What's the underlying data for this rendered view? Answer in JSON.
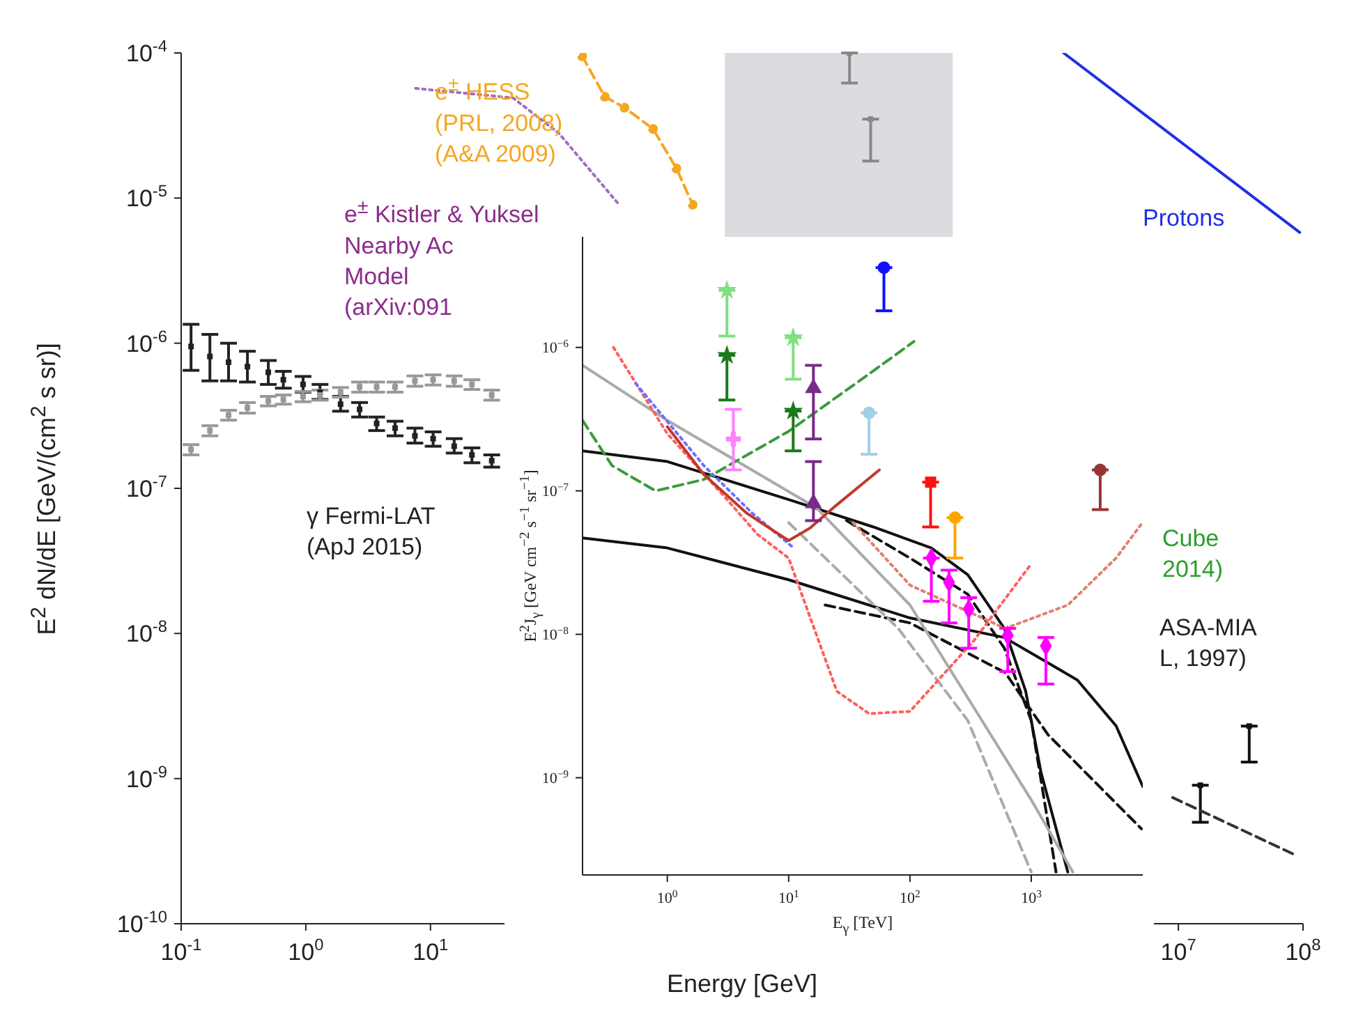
{
  "chart_data": [
    {
      "type": "scatter",
      "xlabel": "Energy [GeV]",
      "ylabel": "E$^{2}$ dN/dE  [GeV/(cm$^{2}$ s sr)]",
      "log": "xy",
      "xlim": [
        0.1,
        100000000
      ],
      "ylim": [
        1e-10,
        0.0001
      ],
      "xticks": [
        {
          "value": 0.1,
          "label": "10$^{-1}$"
        },
        {
          "value": 1,
          "label": "10$^{0}$"
        },
        {
          "value": 10,
          "label": "10$^{1}$"
        },
        {
          "value": 100,
          "label": null
        },
        {
          "value": 1000,
          "label": null
        },
        {
          "value": 10000,
          "label": null
        },
        {
          "value": 100000,
          "label": null
        },
        {
          "value": 1000000,
          "label": null
        },
        {
          "value": 10000000,
          "label": "10$^{7}$"
        },
        {
          "value": 100000000,
          "label": "10$^{8}$"
        }
      ],
      "yticks": [
        {
          "value": 1e-10,
          "label": "10$^{-10}$"
        },
        {
          "value": 1e-09,
          "label": "10$^{-9}$"
        },
        {
          "value": 1e-08,
          "label": "10$^{-8}$"
        },
        {
          "value": 1e-07,
          "label": "10$^{-7}$"
        },
        {
          "value": 1e-06,
          "label": "10$^{-6}$"
        },
        {
          "value": 1e-05,
          "label": "10$^{-5}$"
        },
        {
          "value": 0.0001,
          "label": "10$^{-4}$"
        }
      ],
      "bands": [
        {
          "axis": "x",
          "from": 2300,
          "to": 155000,
          "color": "#dcdce0"
        }
      ],
      "annotations": [
        "e$^{±}$ HESS\n(PRL, 2008)\n(A&A 2009)",
        "e$^{±}$ Kistler & Yuksel\nNearby Ac\nModel\n(arXiv:091",
        "γ Fermi-LAT\n(ApJ 2015)",
        "Cube\n2014)",
        "ASA-MIA\nL, 1997)",
        "Protons"
      ],
      "series": [
        {
          "marker": "square",
          "color": "#222222",
          "x": [
            0.12,
            0.17,
            0.24,
            0.34,
            0.5,
            0.66,
            0.95,
            1.3,
            1.9,
            2.7,
            3.7,
            5.2,
            7.5,
            10.5,
            15.5,
            21.5,
            31
          ],
          "values": [
            9.5e-07,
            8.1e-07,
            7.4e-07,
            6.9e-07,
            6.3e-07,
            5.6e-07,
            5.2e-07,
            4.6e-07,
            3.8e-07,
            3.5e-07,
            2.8e-07,
            2.6e-07,
            2.3e-07,
            2.2e-07,
            1.95e-07,
            1.7e-07,
            1.55e-07
          ],
          "errors": [
            [
              6.5e-07,
              1.35e-06
            ],
            [
              5.5e-07,
              1.15e-06
            ],
            [
              5.5e-07,
              1e-06
            ],
            [
              5.4e-07,
              8.8e-07
            ],
            [
              5.2e-07,
              7.6e-07
            ],
            [
              4.9e-07,
              6.4e-07
            ],
            [
              4.6e-07,
              5.9e-07
            ],
            [
              4.1e-07,
              5.2e-07
            ],
            [
              3.4e-07,
              4.3e-07
            ],
            [
              3.1e-07,
              3.9e-07
            ],
            [
              2.5e-07,
              3.1e-07
            ],
            [
              2.3e-07,
              2.9e-07
            ],
            [
              2.05e-07,
              2.6e-07
            ],
            [
              1.95e-07,
              2.45e-07
            ],
            [
              1.75e-07,
              2.2e-07
            ],
            [
              1.5e-07,
              1.9e-07
            ],
            [
              1.4e-07,
              1.7e-07
            ]
          ]
        },
        {
          "marker": "square",
          "color": "#999999",
          "x": [
            0.12,
            0.17,
            0.24,
            0.34,
            0.5,
            0.66,
            0.95,
            1.3,
            1.9,
            2.7,
            3.7,
            5.2,
            7.5,
            10.5,
            15.5,
            21.5,
            31
          ],
          "values": [
            1.85e-07,
            2.5e-07,
            3.2e-07,
            3.6e-07,
            4e-07,
            4.1e-07,
            4.3e-07,
            4.4e-07,
            4.6e-07,
            5e-07,
            5e-07,
            5e-07,
            5.5e-07,
            5.6e-07,
            5.5e-07,
            5.2e-07,
            4.4e-07
          ],
          "errors": [
            1.5e-08,
            2e-08,
            2.5e-08,
            3e-08,
            3e-08,
            3e-08,
            3.5e-08,
            3.5e-08,
            3.5e-08,
            4e-08,
            4e-08,
            4e-08,
            4.5e-08,
            4.5e-08,
            4.5e-08,
            4e-08,
            3.5e-08
          ]
        },
        {
          "type": "line",
          "marker": "circle",
          "line_style": "dashed",
          "color": "#f5a623",
          "x": [
            165,
            250,
            360,
            610,
            940,
            1270
          ],
          "values": [
            9.5e-05,
            5e-05,
            4.2e-05,
            3e-05,
            1.6e-05,
            9e-06
          ]
        },
        {
          "type": "line",
          "marker": "none",
          "line_style": "dotted",
          "color": "#a070c0",
          "x": [
            7.6,
            46,
            107,
            330
          ],
          "values": [
            5.7e-05,
            4.9e-05,
            2.8e-05,
            8.9e-06
          ]
        },
        {
          "type": "line",
          "marker": "none",
          "line_style": "solid",
          "color": "#1f2fe6",
          "x": [
            1200000,
            94000000
          ],
          "values": [
            0.0001,
            5.8e-06
          ]
        },
        {
          "marker": "square",
          "color": "#888888",
          "x": [
            23000,
            34000
          ],
          "values": [
            0.0001,
            3.5e-05
          ],
          "errors": [
            [
              6.2e-05,
              0.0001
            ],
            [
              1.8e-05,
              3.5e-05
            ]
          ]
        },
        {
          "marker": "square",
          "color": "#111111",
          "x": [
            15000000,
            37000000
          ],
          "values": [
            9e-10,
            2.3e-09
          ],
          "errors": [
            [
              5e-10,
              9e-10
            ],
            [
              1.3e-09,
              2.3e-09
            ]
          ]
        },
        {
          "type": "line",
          "marker": "none",
          "line_style": "dashed",
          "color": "#333333",
          "x": [
            9000000,
            85000000
          ],
          "values": [
            7.4e-10,
            3e-10
          ]
        }
      ]
    },
    {
      "type": "line",
      "xlabel": "E$_{γ}$ [TeV]",
      "ylabel": "E$^{2}$J$_{γ}$ [GeV cm$^{−2}$ s$^{−1}$ sr$^{−1}$]",
      "log": "xy",
      "xlim": [
        0.2,
        8300
      ],
      "ylim": [
        2.1e-10,
        5.9e-06
      ],
      "xticks": [
        {
          "value": 1,
          "label": "10$^{0}$"
        },
        {
          "value": 10,
          "label": "10$^{1}$"
        },
        {
          "value": 100,
          "label": "10$^{2}$"
        },
        {
          "value": 1000,
          "label": "10$^{3}$"
        }
      ],
      "yticks": [
        {
          "value": 1e-09,
          "label": "10$^{−9}$"
        },
        {
          "value": 1e-08,
          "label": "10$^{−8}$"
        },
        {
          "value": 1e-07,
          "label": "10$^{−7}$"
        },
        {
          "value": 1e-06,
          "label": "10$^{−6}$"
        }
      ],
      "series": [
        {
          "line_style": "solid",
          "color": "#111111",
          "x": [
            0.2,
            1,
            10,
            50,
            150,
            300,
            600,
            900,
            1200,
            2000
          ],
          "values": [
            1.9e-07,
            1.6e-07,
            8.7e-08,
            5.6e-08,
            4e-08,
            2.6e-08,
            1.1e-08,
            4e-09,
            1.1e-09,
            2.2e-10
          ]
        },
        {
          "line_style": "solid",
          "color": "#111111",
          "x": [
            0.2,
            1,
            10,
            100,
            600,
            2400,
            5000,
            8300
          ],
          "values": [
            4.7e-08,
            4e-08,
            2.4e-08,
            1.3e-08,
            9.5e-09,
            4.8e-09,
            2.3e-09,
            8.7e-10
          ]
        },
        {
          "line_style": "dashed",
          "color": "#111111",
          "x": [
            30,
            100,
            300,
            600,
            1000,
            1600
          ],
          "values": [
            6.2e-08,
            3.4e-08,
            1.9e-08,
            8e-09,
            2.5e-09,
            2.2e-10
          ]
        },
        {
          "line_style": "dashed",
          "color": "#111111",
          "x": [
            20,
            100,
            610,
            1370,
            8100
          ],
          "values": [
            1.6e-08,
            1.2e-08,
            5.4e-09,
            2e-09,
            4.4e-10
          ]
        },
        {
          "line_style": "solid",
          "color": "#aaaaaa",
          "x": [
            0.2,
            1,
            17,
            100,
            500,
            1000,
            2200
          ],
          "values": [
            7.5e-07,
            3.1e-07,
            7.6e-08,
            1.6e-08,
            1.8e-09,
            7e-10,
            2.2e-10
          ]
        },
        {
          "line_style": "dashed",
          "color": "#aaaaaa",
          "x": [
            10,
            80,
            300,
            1000
          ],
          "values": [
            6e-08,
            1.1e-08,
            2.5e-09,
            2.2e-10
          ]
        },
        {
          "line_style": "dashed",
          "color": "#3a9a3a",
          "x": [
            0.2,
            0.35,
            0.8,
            2,
            10,
            40,
            108
          ],
          "values": [
            3.1e-07,
            1.5e-07,
            1e-07,
            1.2e-07,
            2.6e-07,
            6e-07,
            1.1e-06
          ]
        },
        {
          "line_style": "dotted",
          "color": "#ff6060",
          "x": [
            0.36,
            1,
            3,
            5.5,
            10,
            25,
            46,
            100,
            335,
            1000
          ],
          "values": [
            1e-06,
            2.5e-07,
            9e-08,
            5e-08,
            3.4e-08,
            4e-09,
            2.8e-09,
            2.9e-09,
            9e-09,
            3.1e-08
          ]
        },
        {
          "line_style": "dotted",
          "color": "#e08070",
          "x": [
            34,
            100,
            610,
            2000,
            5000,
            8000
          ],
          "values": [
            6e-08,
            2.2e-08,
            1.1e-08,
            1.6e-08,
            3.4e-08,
            5.8e-08
          ]
        },
        {
          "line_style": "dotted",
          "color": "#7070ff",
          "x": [
            0.55,
            2,
            5,
            11
          ],
          "values": [
            5.6e-07,
            1.5e-07,
            7e-08,
            4e-08
          ]
        },
        {
          "line_style": "solid",
          "color": "#c0392b",
          "x": [
            1,
            2,
            4.5,
            10,
            15,
            25,
            56
          ],
          "values": [
            2.8e-07,
            1.3e-07,
            7e-08,
            4.5e-08,
            5.5e-08,
            8e-08,
            1.4e-07
          ]
        },
        {
          "type": "scatter",
          "marker": "star",
          "color": "#80e080",
          "x": [
            3.1,
            10.9
          ],
          "values": [
            2.5e-06,
            1.17e-06
          ],
          "errors": [
            [
              1.2e-06,
              2.5e-06
            ],
            [
              6e-07,
              1.17e-06
            ]
          ]
        },
        {
          "type": "scatter",
          "marker": "star",
          "color": "#1a7a1a",
          "x": [
            3.1,
            10.9
          ],
          "values": [
            8.8e-07,
            3.6e-07
          ],
          "errors": [
            [
              4.3e-07,
              8.8e-07
            ],
            [
              1.9e-07,
              3.6e-07
            ]
          ]
        },
        {
          "type": "scatter",
          "marker": "circle",
          "color": "#1010ff",
          "x": [
            61
          ],
          "values": [
            3.6e-06
          ],
          "errors": [
            [
              1.8e-06,
              3.6e-06
            ]
          ]
        },
        {
          "type": "scatter",
          "marker": "circle",
          "color": "#a0d0e8",
          "x": [
            46
          ],
          "values": [
            3.5e-07
          ],
          "errors": [
            [
              1.8e-07,
              3.5e-07
            ]
          ]
        },
        {
          "type": "scatter",
          "marker": "triangle",
          "color": "#7a2a8a",
          "x": [
            16,
            16
          ],
          "values": [
            5.2e-07,
            8.2e-08
          ],
          "errors": [
            [
              2.3e-07,
              7.5e-07
            ],
            [
              6.2e-08,
              1.6e-07
            ]
          ]
        },
        {
          "type": "scatter",
          "marker": "cross",
          "color": "#ff80ff",
          "x": [
            3.5
          ],
          "values": [
            2.3e-07
          ],
          "errors": [
            [
              1.4e-07,
              3.7e-07
            ]
          ]
        },
        {
          "type": "scatter",
          "marker": "square",
          "color": "#ff1010",
          "x": [
            148
          ],
          "values": [
            1.15e-07
          ],
          "errors": [
            [
              5.6e-08,
              1.15e-07
            ]
          ]
        },
        {
          "type": "scatter",
          "marker": "circle",
          "color": "#ffa500",
          "x": [
            235
          ],
          "values": [
            6.5e-08
          ],
          "errors": [
            [
              3.4e-08,
              6.5e-08
            ]
          ]
        },
        {
          "type": "scatter",
          "marker": "circle",
          "color": "#993333",
          "x": [
            3700
          ],
          "values": [
            1.4e-07
          ],
          "errors": [
            [
              7.4e-08,
              1.4e-07
            ]
          ]
        },
        {
          "type": "scatter",
          "marker": "diamond",
          "color": "#ff00ff",
          "x": [
            150,
            210,
            305,
            640,
            1320
          ],
          "values": [
            3.4e-08,
            2.3e-08,
            1.5e-08,
            9.8e-09,
            8.3e-09
          ],
          "errors": [
            [
              1.7e-08,
              3.4e-08
            ],
            [
              1.2e-08,
              2.8e-08
            ],
            [
              8e-09,
              1.8e-08
            ],
            [
              5.5e-09,
              1.1e-08
            ],
            [
              4.5e-09,
              9.5e-09
            ]
          ]
        }
      ]
    }
  ]
}
